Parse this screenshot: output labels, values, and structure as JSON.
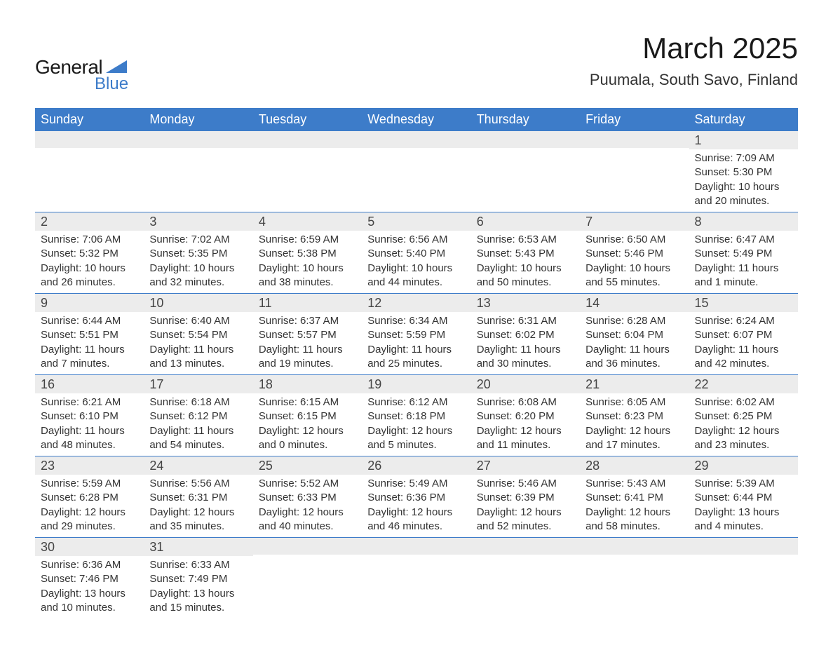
{
  "logo": {
    "text_general": "General",
    "text_blue": "Blue",
    "triangle_color": "#3d7cc9"
  },
  "title": "March 2025",
  "location": "Puumala, South Savo, Finland",
  "colors": {
    "header_bg": "#3d7cc9",
    "header_text": "#ffffff",
    "daynum_bg": "#ececec",
    "row_border": "#3d7cc9",
    "body_text": "#333333"
  },
  "day_headers": [
    "Sunday",
    "Monday",
    "Tuesday",
    "Wednesday",
    "Thursday",
    "Friday",
    "Saturday"
  ],
  "weeks": [
    [
      null,
      null,
      null,
      null,
      null,
      null,
      {
        "n": "1",
        "sunrise": "Sunrise: 7:09 AM",
        "sunset": "Sunset: 5:30 PM",
        "daylight1": "Daylight: 10 hours",
        "daylight2": "and 20 minutes."
      }
    ],
    [
      {
        "n": "2",
        "sunrise": "Sunrise: 7:06 AM",
        "sunset": "Sunset: 5:32 PM",
        "daylight1": "Daylight: 10 hours",
        "daylight2": "and 26 minutes."
      },
      {
        "n": "3",
        "sunrise": "Sunrise: 7:02 AM",
        "sunset": "Sunset: 5:35 PM",
        "daylight1": "Daylight: 10 hours",
        "daylight2": "and 32 minutes."
      },
      {
        "n": "4",
        "sunrise": "Sunrise: 6:59 AM",
        "sunset": "Sunset: 5:38 PM",
        "daylight1": "Daylight: 10 hours",
        "daylight2": "and 38 minutes."
      },
      {
        "n": "5",
        "sunrise": "Sunrise: 6:56 AM",
        "sunset": "Sunset: 5:40 PM",
        "daylight1": "Daylight: 10 hours",
        "daylight2": "and 44 minutes."
      },
      {
        "n": "6",
        "sunrise": "Sunrise: 6:53 AM",
        "sunset": "Sunset: 5:43 PM",
        "daylight1": "Daylight: 10 hours",
        "daylight2": "and 50 minutes."
      },
      {
        "n": "7",
        "sunrise": "Sunrise: 6:50 AM",
        "sunset": "Sunset: 5:46 PM",
        "daylight1": "Daylight: 10 hours",
        "daylight2": "and 55 minutes."
      },
      {
        "n": "8",
        "sunrise": "Sunrise: 6:47 AM",
        "sunset": "Sunset: 5:49 PM",
        "daylight1": "Daylight: 11 hours",
        "daylight2": "and 1 minute."
      }
    ],
    [
      {
        "n": "9",
        "sunrise": "Sunrise: 6:44 AM",
        "sunset": "Sunset: 5:51 PM",
        "daylight1": "Daylight: 11 hours",
        "daylight2": "and 7 minutes."
      },
      {
        "n": "10",
        "sunrise": "Sunrise: 6:40 AM",
        "sunset": "Sunset: 5:54 PM",
        "daylight1": "Daylight: 11 hours",
        "daylight2": "and 13 minutes."
      },
      {
        "n": "11",
        "sunrise": "Sunrise: 6:37 AM",
        "sunset": "Sunset: 5:57 PM",
        "daylight1": "Daylight: 11 hours",
        "daylight2": "and 19 minutes."
      },
      {
        "n": "12",
        "sunrise": "Sunrise: 6:34 AM",
        "sunset": "Sunset: 5:59 PM",
        "daylight1": "Daylight: 11 hours",
        "daylight2": "and 25 minutes."
      },
      {
        "n": "13",
        "sunrise": "Sunrise: 6:31 AM",
        "sunset": "Sunset: 6:02 PM",
        "daylight1": "Daylight: 11 hours",
        "daylight2": "and 30 minutes."
      },
      {
        "n": "14",
        "sunrise": "Sunrise: 6:28 AM",
        "sunset": "Sunset: 6:04 PM",
        "daylight1": "Daylight: 11 hours",
        "daylight2": "and 36 minutes."
      },
      {
        "n": "15",
        "sunrise": "Sunrise: 6:24 AM",
        "sunset": "Sunset: 6:07 PM",
        "daylight1": "Daylight: 11 hours",
        "daylight2": "and 42 minutes."
      }
    ],
    [
      {
        "n": "16",
        "sunrise": "Sunrise: 6:21 AM",
        "sunset": "Sunset: 6:10 PM",
        "daylight1": "Daylight: 11 hours",
        "daylight2": "and 48 minutes."
      },
      {
        "n": "17",
        "sunrise": "Sunrise: 6:18 AM",
        "sunset": "Sunset: 6:12 PM",
        "daylight1": "Daylight: 11 hours",
        "daylight2": "and 54 minutes."
      },
      {
        "n": "18",
        "sunrise": "Sunrise: 6:15 AM",
        "sunset": "Sunset: 6:15 PM",
        "daylight1": "Daylight: 12 hours",
        "daylight2": "and 0 minutes."
      },
      {
        "n": "19",
        "sunrise": "Sunrise: 6:12 AM",
        "sunset": "Sunset: 6:18 PM",
        "daylight1": "Daylight: 12 hours",
        "daylight2": "and 5 minutes."
      },
      {
        "n": "20",
        "sunrise": "Sunrise: 6:08 AM",
        "sunset": "Sunset: 6:20 PM",
        "daylight1": "Daylight: 12 hours",
        "daylight2": "and 11 minutes."
      },
      {
        "n": "21",
        "sunrise": "Sunrise: 6:05 AM",
        "sunset": "Sunset: 6:23 PM",
        "daylight1": "Daylight: 12 hours",
        "daylight2": "and 17 minutes."
      },
      {
        "n": "22",
        "sunrise": "Sunrise: 6:02 AM",
        "sunset": "Sunset: 6:25 PM",
        "daylight1": "Daylight: 12 hours",
        "daylight2": "and 23 minutes."
      }
    ],
    [
      {
        "n": "23",
        "sunrise": "Sunrise: 5:59 AM",
        "sunset": "Sunset: 6:28 PM",
        "daylight1": "Daylight: 12 hours",
        "daylight2": "and 29 minutes."
      },
      {
        "n": "24",
        "sunrise": "Sunrise: 5:56 AM",
        "sunset": "Sunset: 6:31 PM",
        "daylight1": "Daylight: 12 hours",
        "daylight2": "and 35 minutes."
      },
      {
        "n": "25",
        "sunrise": "Sunrise: 5:52 AM",
        "sunset": "Sunset: 6:33 PM",
        "daylight1": "Daylight: 12 hours",
        "daylight2": "and 40 minutes."
      },
      {
        "n": "26",
        "sunrise": "Sunrise: 5:49 AM",
        "sunset": "Sunset: 6:36 PM",
        "daylight1": "Daylight: 12 hours",
        "daylight2": "and 46 minutes."
      },
      {
        "n": "27",
        "sunrise": "Sunrise: 5:46 AM",
        "sunset": "Sunset: 6:39 PM",
        "daylight1": "Daylight: 12 hours",
        "daylight2": "and 52 minutes."
      },
      {
        "n": "28",
        "sunrise": "Sunrise: 5:43 AM",
        "sunset": "Sunset: 6:41 PM",
        "daylight1": "Daylight: 12 hours",
        "daylight2": "and 58 minutes."
      },
      {
        "n": "29",
        "sunrise": "Sunrise: 5:39 AM",
        "sunset": "Sunset: 6:44 PM",
        "daylight1": "Daylight: 13 hours",
        "daylight2": "and 4 minutes."
      }
    ],
    [
      {
        "n": "30",
        "sunrise": "Sunrise: 6:36 AM",
        "sunset": "Sunset: 7:46 PM",
        "daylight1": "Daylight: 13 hours",
        "daylight2": "and 10 minutes."
      },
      {
        "n": "31",
        "sunrise": "Sunrise: 6:33 AM",
        "sunset": "Sunset: 7:49 PM",
        "daylight1": "Daylight: 13 hours",
        "daylight2": "and 15 minutes."
      },
      null,
      null,
      null,
      null,
      null
    ]
  ]
}
